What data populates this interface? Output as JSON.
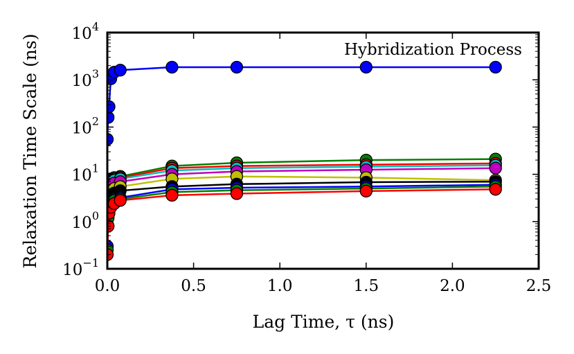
{
  "chart_data": {
    "type": "line",
    "title": "",
    "annotation": "Hybridization Process",
    "xlabel": "Lag Time, τ (ns)",
    "ylabel": "Relaxation Time Scale (ns)",
    "xlim": [
      0.0,
      2.5
    ],
    "ylim": [
      0.1,
      10000
    ],
    "yscale": "log",
    "grid": false,
    "legend": "none",
    "xticks": [
      {
        "value": 0.0,
        "label": "0.0"
      },
      {
        "value": 0.5,
        "label": "0.5"
      },
      {
        "value": 1.0,
        "label": "1.0"
      },
      {
        "value": 1.5,
        "label": "1.5"
      },
      {
        "value": 2.0,
        "label": "2.0"
      },
      {
        "value": 2.5,
        "label": "2.5"
      }
    ],
    "yticks": [
      {
        "value": 0.1,
        "base": "10",
        "exp": "−1"
      },
      {
        "value": 1,
        "base": "10",
        "exp": "0"
      },
      {
        "value": 10,
        "base": "10",
        "exp": "1"
      },
      {
        "value": 100,
        "base": "10",
        "exp": "2"
      },
      {
        "value": 1000,
        "base": "10",
        "exp": "3"
      },
      {
        "value": 10000,
        "base": "10",
        "exp": "4"
      }
    ],
    "x": [
      0.0,
      0.005,
      0.01,
      0.02,
      0.04,
      0.075,
      0.375,
      0.75,
      1.5,
      2.25
    ],
    "series": [
      {
        "color": "#0000ff",
        "values": [
          55,
          160,
          270,
          1050,
          1450,
          1600,
          1850,
          1850,
          1850,
          1850
        ]
      },
      {
        "color": "#008000",
        "values": [
          4.5,
          6.0,
          7.0,
          8.0,
          8.5,
          9.0,
          15.0,
          17.5,
          20.0,
          21.0
        ]
      },
      {
        "color": "#ff0000",
        "values": [
          4.0,
          5.5,
          6.5,
          7.5,
          8.0,
          8.5,
          13.5,
          15.0,
          16.0,
          17.0
        ]
      },
      {
        "color": "#00bfbf",
        "values": [
          3.5,
          5.0,
          6.0,
          7.0,
          7.5,
          8.0,
          12.0,
          13.5,
          14.5,
          15.5
        ]
      },
      {
        "color": "#bf00bf",
        "values": [
          3.0,
          4.5,
          5.5,
          6.0,
          6.5,
          7.0,
          10.0,
          11.5,
          12.5,
          13.5
        ]
      },
      {
        "color": "#bfbf00",
        "values": [
          2.0,
          3.0,
          3.5,
          4.5,
          5.0,
          5.5,
          8.0,
          9.0,
          8.5,
          7.5
        ]
      },
      {
        "color": "#000000",
        "values": [
          1.5,
          2.5,
          3.0,
          3.5,
          4.0,
          4.5,
          5.5,
          6.2,
          6.8,
          7.0
        ]
      },
      {
        "color": "#0000ff",
        "values": [
          0.3,
          1.5,
          2.2,
          2.8,
          3.0,
          3.2,
          4.8,
          5.2,
          5.5,
          6.0
        ]
      },
      {
        "color": "#008000",
        "values": [
          0.25,
          1.2,
          2.0,
          2.5,
          2.8,
          3.0,
          4.2,
          4.6,
          5.0,
          5.5
        ]
      },
      {
        "color": "#ff0000",
        "values": [
          0.2,
          0.8,
          1.5,
          2.0,
          2.4,
          2.8,
          3.6,
          3.9,
          4.4,
          4.8
        ]
      }
    ]
  }
}
